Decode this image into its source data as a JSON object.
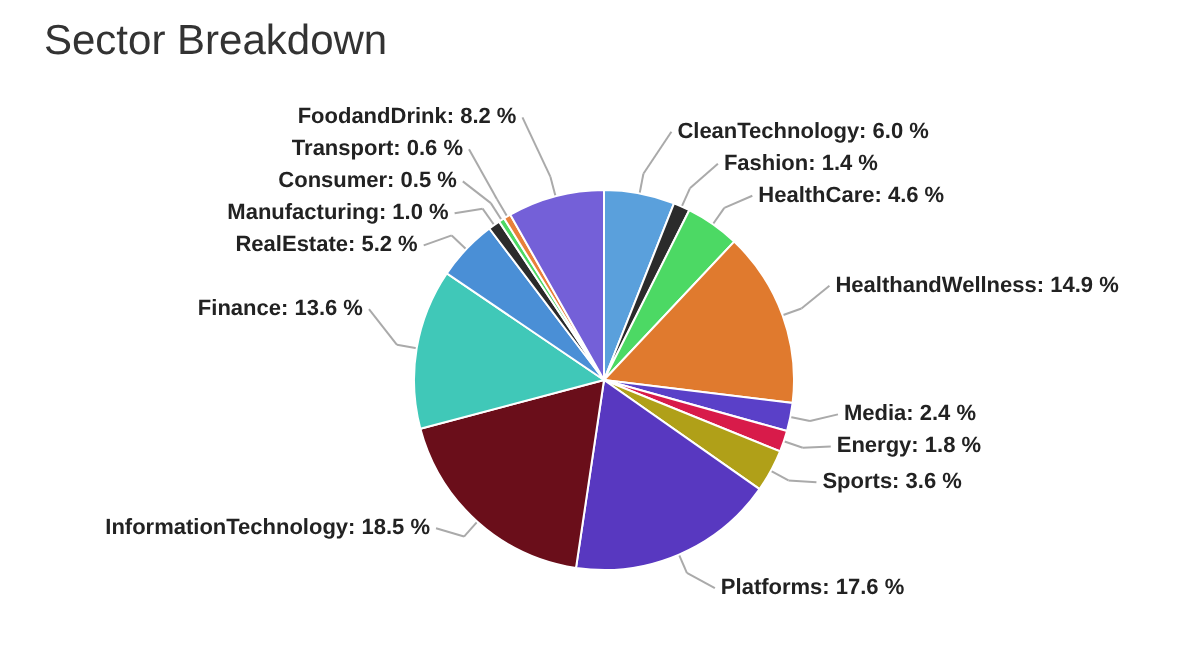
{
  "chart_data": {
    "type": "pie",
    "title": "Sector Breakdown",
    "categories": [
      "CleanTechnology",
      "Fashion",
      "HealthCare",
      "HealthandWellness",
      "Media",
      "Energy",
      "Sports",
      "Platforms",
      "InformationTechnology",
      "Finance",
      "RealEstate",
      "Manufacturing",
      "Consumer",
      "Transport",
      "FoodandDrink"
    ],
    "values": [
      6.0,
      1.4,
      4.6,
      14.9,
      2.4,
      1.8,
      3.6,
      17.6,
      18.5,
      13.6,
      5.2,
      1.0,
      0.5,
      0.6,
      8.2
    ],
    "value_labels": [
      "6.0 %",
      "1.4 %",
      "4.6 %",
      "14.9 %",
      "2.4 %",
      "1.8 %",
      "3.6 %",
      "17.6 %",
      "18.5 %",
      "13.6 %",
      "5.2 %",
      "1.0 %",
      "0.5 %",
      "0.6 %",
      "8.2 %"
    ],
    "colors": [
      "#5aa0dc",
      "#2b2b2b",
      "#4cd964",
      "#e07a2e",
      "#5a40c8",
      "#d81b4a",
      "#b0a018",
      "#5838c0",
      "#6a0e1a",
      "#40c8b8",
      "#4a8fd6",
      "#2b2b2b",
      "#4cd964",
      "#e8803a",
      "#7460d8"
    ]
  }
}
